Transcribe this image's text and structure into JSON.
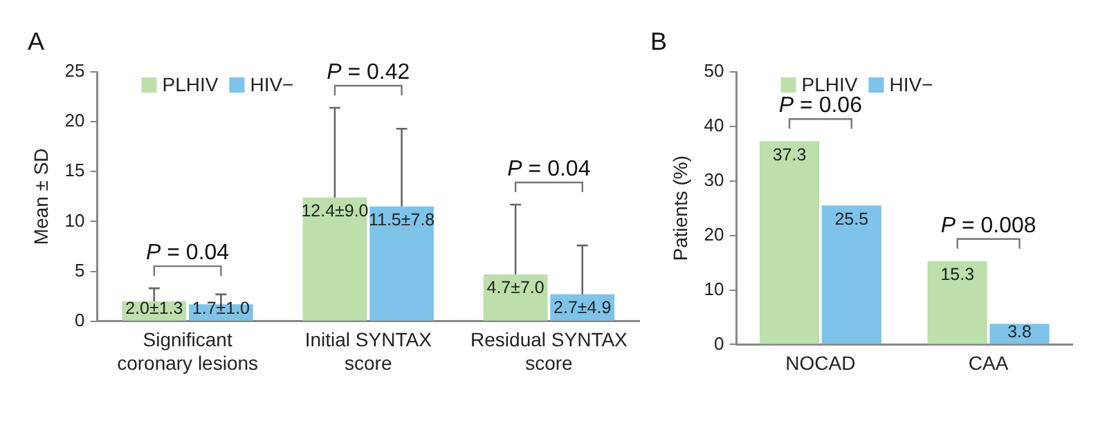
{
  "chart_data": [
    {
      "type": "bar",
      "ylabel": "Mean ± SD",
      "categories": [
        "Significant coronary lesions",
        "Initial SYNTAX score",
        "Residual SYNTAX score"
      ],
      "series": [
        {
          "name": "PLHIV",
          "color": "#bcdfac",
          "values": [
            2.0,
            12.4,
            4.7
          ],
          "errors": [
            [
              2.0,
              3.3
            ],
            [
              12.4,
              21.4
            ],
            [
              4.7,
              11.7
            ]
          ],
          "value_labels": [
            "2.0±1.3",
            "12.4±9.0",
            "4.7±7.0"
          ]
        },
        {
          "name": "HIV−",
          "color": "#7dc3ea",
          "values": [
            1.7,
            11.5,
            2.7
          ],
          "errors": [
            [
              1.7,
              2.7
            ],
            [
              11.5,
              19.3
            ],
            [
              2.7,
              7.6
            ]
          ],
          "value_labels": [
            "1.7±1.0",
            "11.5±7.8",
            "2.7±4.9"
          ]
        }
      ],
      "ylim": [
        0,
        25
      ],
      "yticks": [
        0,
        5,
        10,
        15,
        20,
        25
      ],
      "grid": false,
      "legend": "top left",
      "annotations": [
        "A",
        "P = 0.04",
        "P = 0.42",
        "P = 0.04"
      ]
    },
    {
      "type": "bar",
      "ylabel": "Patients (%)",
      "categories": [
        "NOCAD",
        "CAA"
      ],
      "series": [
        {
          "name": "PLHIV",
          "color": "#bcdfac",
          "values": [
            37.3,
            15.3
          ]
        },
        {
          "name": "HIV−",
          "color": "#7dc3ea",
          "values": [
            25.5,
            3.8
          ]
        }
      ],
      "ylim": [
        0,
        50
      ],
      "yticks": [
        0,
        10,
        20,
        30,
        40,
        50
      ],
      "grid": false,
      "legend": "top left",
      "data_labels": true,
      "annotations": [
        "B",
        "P = 0.06",
        "P = 0.008"
      ]
    }
  ]
}
